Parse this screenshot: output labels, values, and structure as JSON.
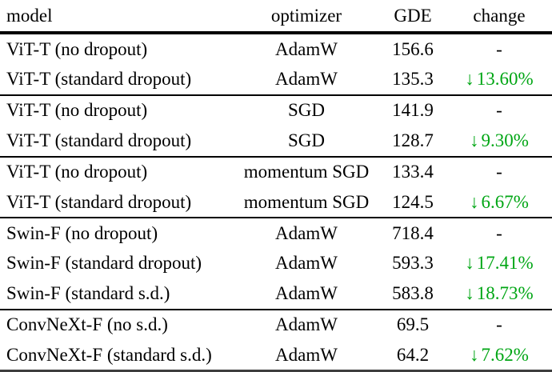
{
  "colors": {
    "change_green": "#00A614",
    "text": "#000000",
    "rule": "#000000"
  },
  "table": {
    "headers": {
      "model": "model",
      "optimizer": "optimizer",
      "gde": "GDE",
      "change": "change"
    },
    "rows": [
      {
        "model": "ViT-T (no dropout)",
        "optimizer": "AdamW",
        "gde": "156.6",
        "arrow": "",
        "change": "-"
      },
      {
        "model": "ViT-T (standard dropout)",
        "optimizer": "AdamW",
        "gde": "135.3",
        "arrow": "↓",
        "change": "13.60%"
      },
      {
        "model": "ViT-T (no dropout)",
        "optimizer": "SGD",
        "gde": "141.9",
        "arrow": "",
        "change": "-"
      },
      {
        "model": "ViT-T (standard dropout)",
        "optimizer": "SGD",
        "gde": "128.7",
        "arrow": "↓",
        "change": "9.30%"
      },
      {
        "model": "ViT-T (no dropout)",
        "optimizer": "momentum SGD",
        "gde": "133.4",
        "arrow": "",
        "change": "-"
      },
      {
        "model": "ViT-T (standard dropout)",
        "optimizer": "momentum SGD",
        "gde": "124.5",
        "arrow": "↓",
        "change": "6.67%"
      },
      {
        "model": "Swin-F (no dropout)",
        "optimizer": "AdamW",
        "gde": "718.4",
        "arrow": "",
        "change": "-"
      },
      {
        "model": "Swin-F (standard dropout)",
        "optimizer": "AdamW",
        "gde": "593.3",
        "arrow": "↓",
        "change": "17.41%"
      },
      {
        "model": "Swin-F (standard s.d.)",
        "optimizer": "AdamW",
        "gde": "583.8",
        "arrow": "↓",
        "change": "18.73%"
      },
      {
        "model": "ConvNeXt-F (no s.d.)",
        "optimizer": "AdamW",
        "gde": "69.5",
        "arrow": "",
        "change": "-"
      },
      {
        "model": "ConvNeXt-F (standard s.d.)",
        "optimizer": "AdamW",
        "gde": "64.2",
        "arrow": "↓",
        "change": "7.62%"
      }
    ]
  }
}
